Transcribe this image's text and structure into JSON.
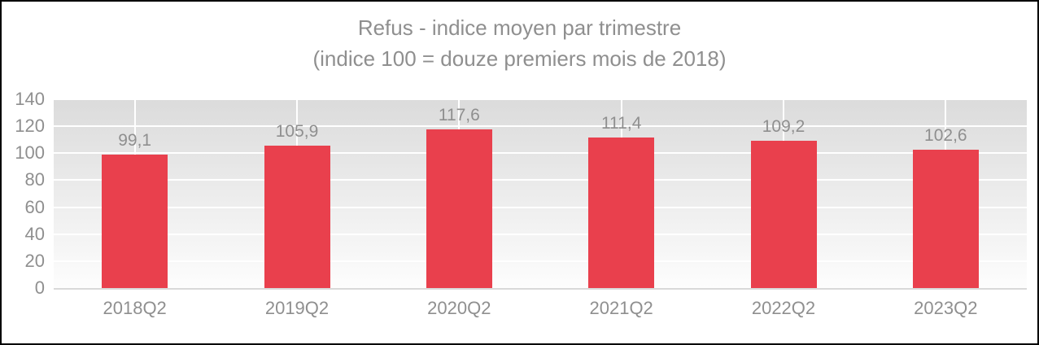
{
  "chart_data": {
    "type": "bar",
    "title": "Refus - indice moyen par trimestre",
    "subtitle": "(indice 100 = douze premiers mois de 2018)",
    "categories": [
      "2018Q2",
      "2019Q2",
      "2020Q2",
      "2021Q2",
      "2022Q2",
      "2023Q2"
    ],
    "values": [
      99.1,
      105.9,
      117.6,
      111.4,
      109.2,
      102.6
    ],
    "value_labels": [
      "99,1",
      "105,9",
      "117,6",
      "111,4",
      "109,2",
      "102,6"
    ],
    "xlabel": "",
    "ylabel": "",
    "ylim": [
      0,
      140
    ],
    "yticks": [
      0,
      20,
      40,
      60,
      80,
      100,
      120,
      140
    ],
    "grid": true,
    "legend": false,
    "colors": {
      "bar": "#E9404D",
      "title_text": "#8F8F8F",
      "axis_text": "#8F8F8F",
      "value_label_text": "#8F8F8F",
      "plot_bg_top": "#DBDBDB",
      "plot_bg_bottom": "#FDFDFD",
      "gridline": "#FFFFFF",
      "axis_line": "#D9D9D9",
      "frame_border": "#000000"
    }
  }
}
